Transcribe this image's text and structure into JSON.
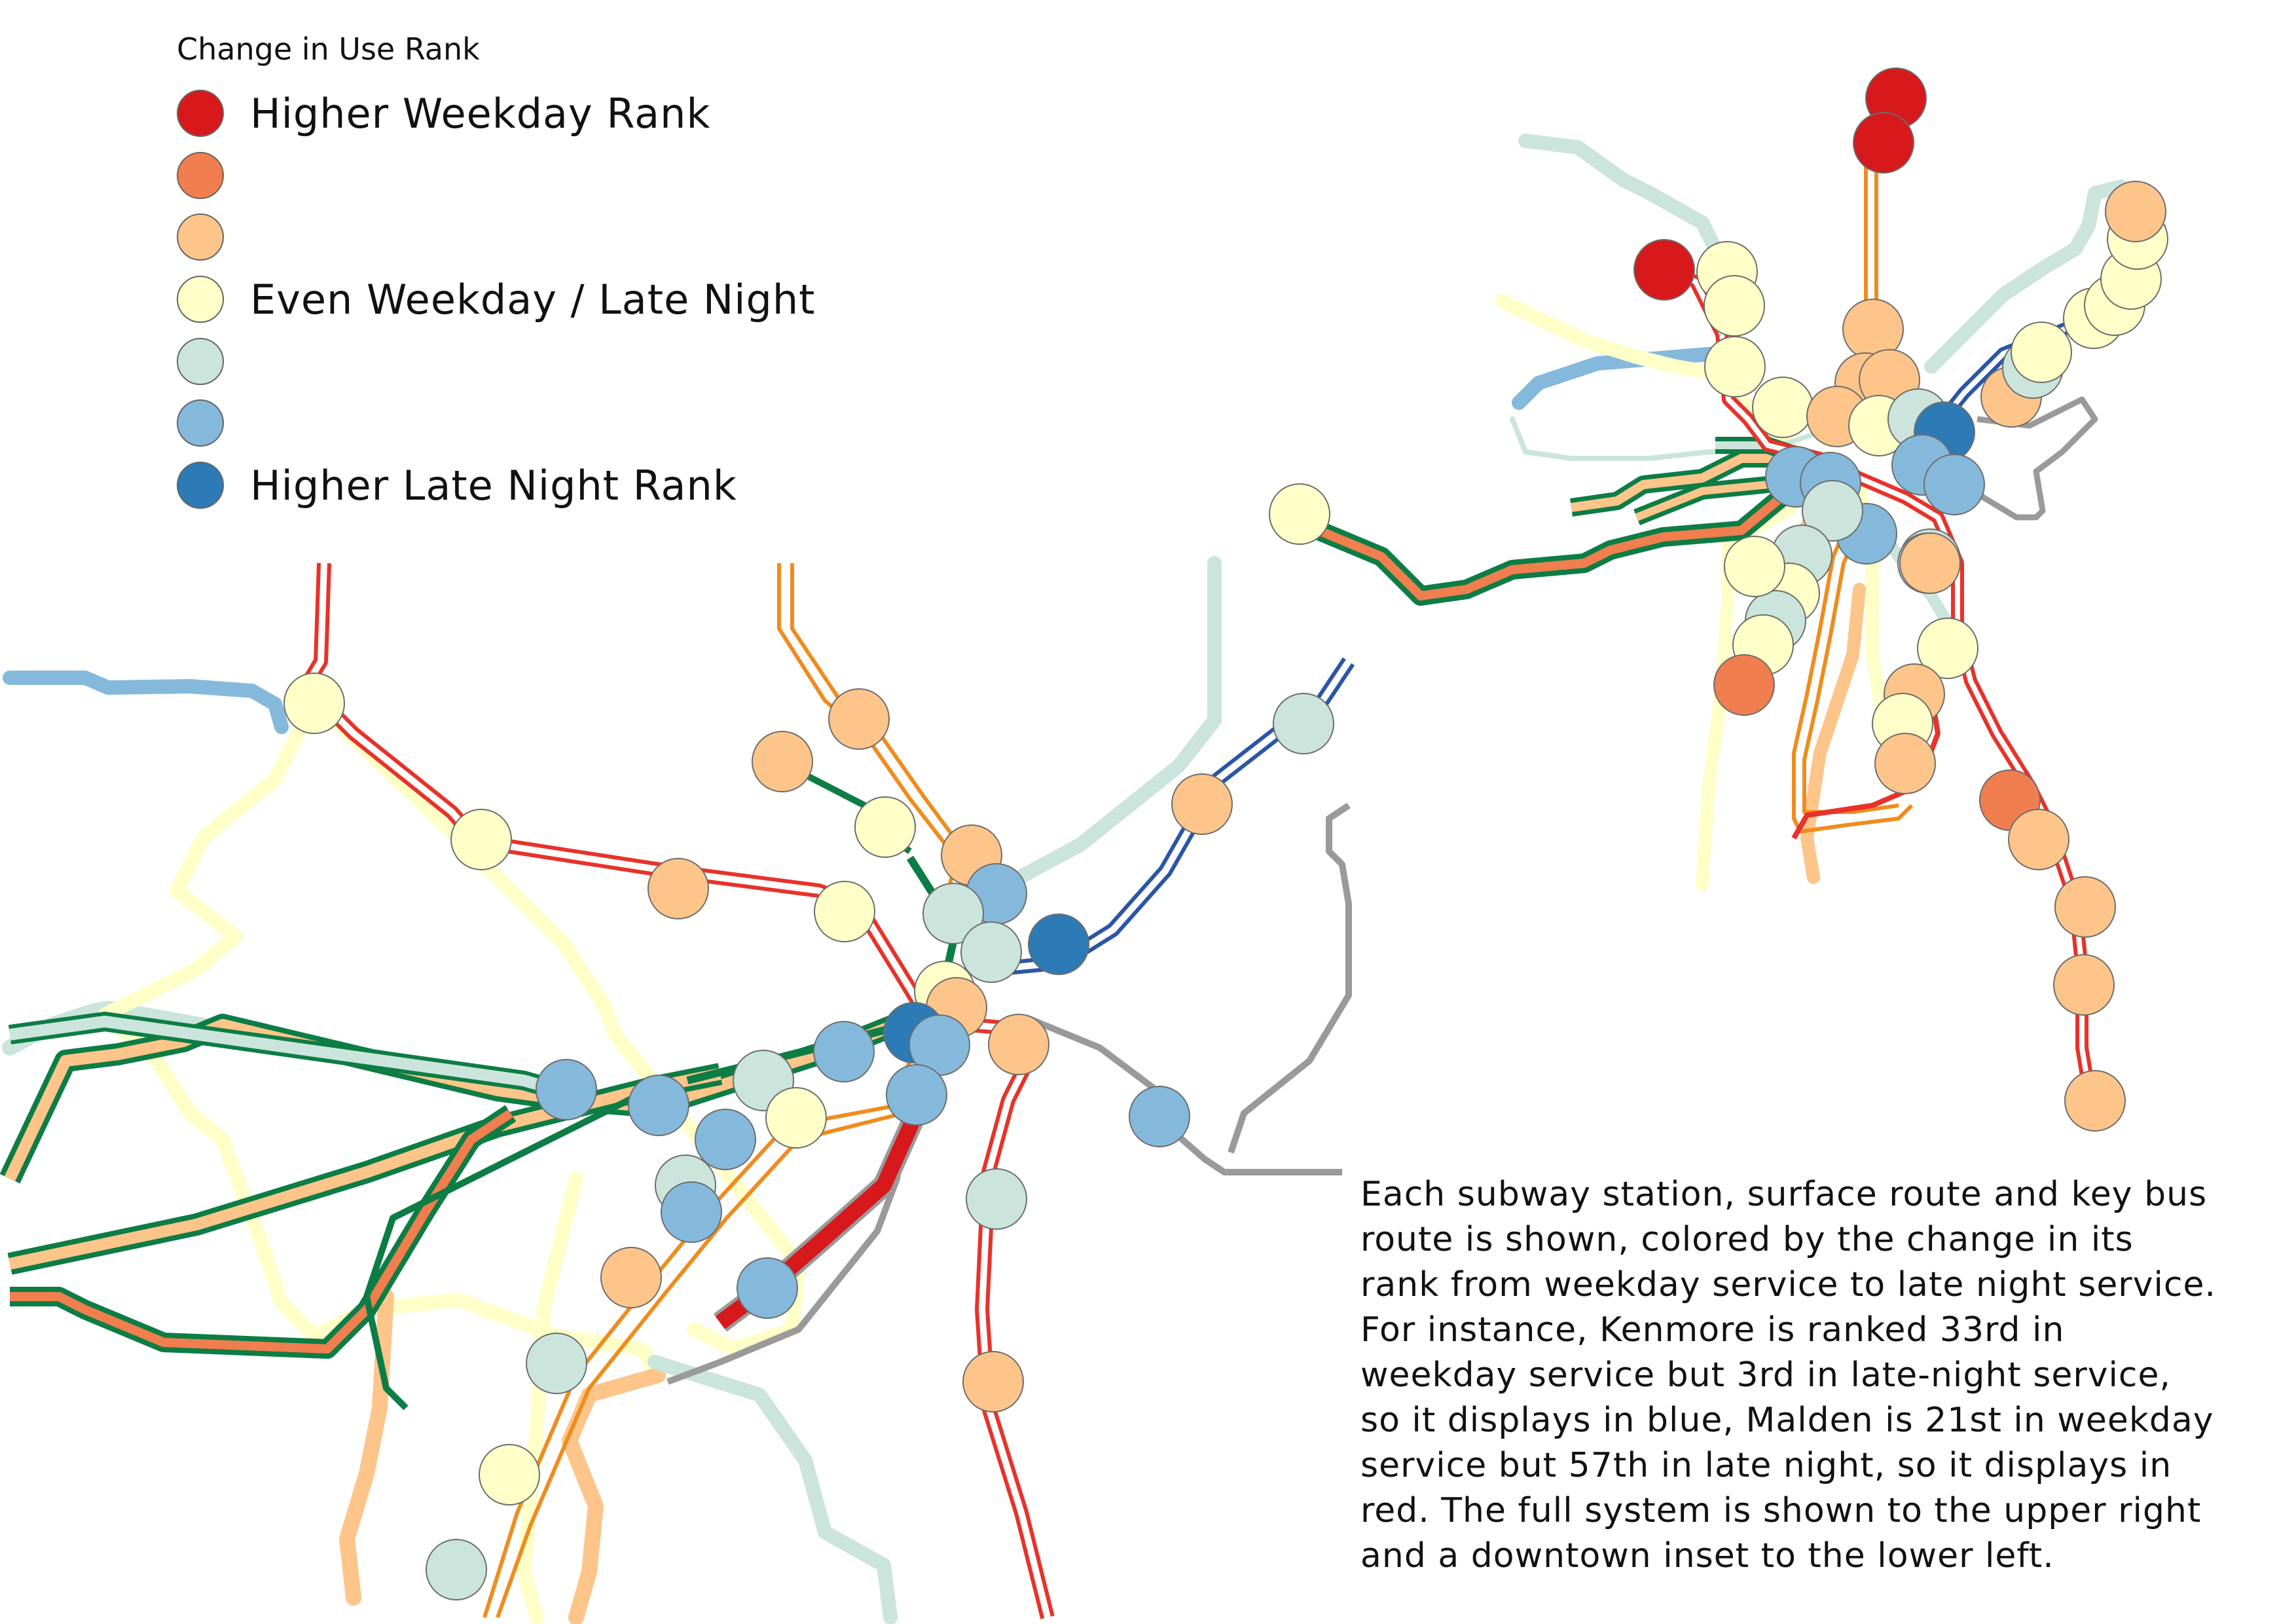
{
  "legend": {
    "title": "Change in Use Rank",
    "items": [
      {
        "label": "Higher Weekday Rank",
        "color": "#d7191c"
      },
      {
        "label": "",
        "color": "#f07e4e"
      },
      {
        "label": "",
        "color": "#fdc58a"
      },
      {
        "label": "Even Weekday / Late Night",
        "color": "#ffffc8"
      },
      {
        "label": "",
        "color": "#cbe5dc"
      },
      {
        "label": "",
        "color": "#85b9dc"
      },
      {
        "label": "Higher Late Night Rank",
        "color": "#2c7bb6"
      }
    ]
  },
  "caption": {
    "lines": [
      "Each subway station, surface route and key bus",
      "route is shown, colored by the change in its",
      "rank from weekday service to late night service.",
      "For instance, Kenmore is ranked 33rd in",
      "weekday service but 3rd in late-night service,",
      "so it displays in blue, Malden is 21st in weekday",
      "service but 57th in late night, so it displays in",
      "red. The full system is shown to the upper right",
      "and a downtown inset to the lower left."
    ]
  },
  "line_colors": {
    "red_line": "#e8322a",
    "orange_line": "#f08c1e",
    "green_line": "#0c7d45",
    "blue_line": "#2a56a8",
    "silver_line": "#9a9a9a"
  }
}
